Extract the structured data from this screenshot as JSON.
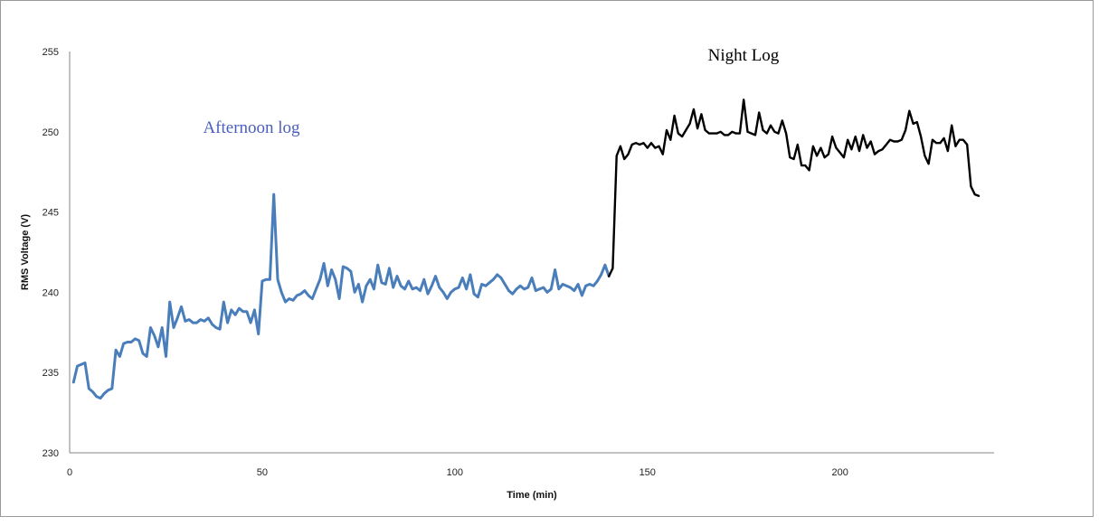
{
  "chart_data": {
    "type": "line",
    "xlabel": "Time (min)",
    "ylabel": "RMS Voltage (V)",
    "xlim": [
      0,
      240
    ],
    "ylim": [
      230,
      255
    ],
    "x_ticks": [
      0,
      50,
      100,
      150,
      200
    ],
    "y_ticks": [
      230,
      235,
      240,
      245,
      250,
      255
    ],
    "grid": false,
    "annotations": [
      {
        "text": "Afternoon log",
        "color": "#4a5fbd"
      },
      {
        "text": "Night Log",
        "color": "#000000"
      }
    ],
    "series": [
      {
        "color": "#4a7ebb",
        "points": [
          [
            1,
            234.4
          ],
          [
            2,
            235.4
          ],
          [
            3,
            235.5
          ],
          [
            4,
            235.6
          ],
          [
            5,
            234.0
          ],
          [
            6,
            233.8
          ],
          [
            7,
            233.5
          ],
          [
            8,
            233.4
          ],
          [
            9,
            233.7
          ],
          [
            10,
            233.9
          ],
          [
            11,
            234.0
          ],
          [
            12,
            236.4
          ],
          [
            13,
            236.0
          ],
          [
            14,
            236.8
          ],
          [
            15,
            236.9
          ],
          [
            16,
            236.9
          ],
          [
            17,
            237.1
          ],
          [
            18,
            237.0
          ],
          [
            19,
            236.2
          ],
          [
            20,
            236.0
          ],
          [
            21,
            237.8
          ],
          [
            22,
            237.3
          ],
          [
            23,
            236.6
          ],
          [
            24,
            237.8
          ],
          [
            25,
            236.0
          ],
          [
            26,
            239.4
          ],
          [
            27,
            237.8
          ],
          [
            28,
            238.4
          ],
          [
            29,
            239.1
          ],
          [
            30,
            238.2
          ],
          [
            31,
            238.3
          ],
          [
            32,
            238.1
          ],
          [
            33,
            238.1
          ],
          [
            34,
            238.3
          ],
          [
            35,
            238.2
          ],
          [
            36,
            238.4
          ],
          [
            37,
            238.0
          ],
          [
            38,
            237.8
          ],
          [
            39,
            237.7
          ],
          [
            40,
            239.4
          ],
          [
            41,
            238.1
          ],
          [
            42,
            238.9
          ],
          [
            43,
            238.6
          ],
          [
            44,
            239.0
          ],
          [
            45,
            238.8
          ],
          [
            46,
            238.8
          ],
          [
            47,
            238.1
          ],
          [
            48,
            238.9
          ],
          [
            49,
            237.4
          ],
          [
            50,
            240.7
          ],
          [
            51,
            240.8
          ],
          [
            52,
            240.8
          ],
          [
            53,
            246.1
          ],
          [
            54,
            240.8
          ],
          [
            55,
            240.0
          ],
          [
            56,
            239.4
          ],
          [
            57,
            239.6
          ],
          [
            58,
            239.5
          ],
          [
            59,
            239.8
          ],
          [
            60,
            239.9
          ],
          [
            61,
            240.1
          ],
          [
            62,
            239.8
          ],
          [
            63,
            239.6
          ],
          [
            64,
            240.2
          ],
          [
            65,
            240.8
          ],
          [
            66,
            241.8
          ],
          [
            67,
            240.4
          ],
          [
            68,
            241.4
          ],
          [
            69,
            240.8
          ],
          [
            70,
            239.6
          ],
          [
            71,
            241.6
          ],
          [
            72,
            241.5
          ],
          [
            73,
            241.3
          ],
          [
            74,
            240.0
          ],
          [
            75,
            240.5
          ],
          [
            76,
            239.4
          ],
          [
            77,
            240.4
          ],
          [
            78,
            240.8
          ],
          [
            79,
            240.2
          ],
          [
            80,
            241.7
          ],
          [
            81,
            240.6
          ],
          [
            82,
            240.5
          ],
          [
            83,
            241.5
          ],
          [
            84,
            240.3
          ],
          [
            85,
            241.0
          ],
          [
            86,
            240.4
          ],
          [
            87,
            240.2
          ],
          [
            88,
            240.7
          ],
          [
            89,
            240.2
          ],
          [
            90,
            240.3
          ],
          [
            91,
            240.1
          ],
          [
            92,
            240.8
          ],
          [
            93,
            239.9
          ],
          [
            94,
            240.4
          ],
          [
            95,
            241.0
          ],
          [
            96,
            240.3
          ],
          [
            97,
            240.0
          ],
          [
            98,
            239.6
          ],
          [
            99,
            240.0
          ],
          [
            100,
            240.2
          ],
          [
            101,
            240.3
          ],
          [
            102,
            240.9
          ],
          [
            103,
            240.2
          ],
          [
            104,
            241.1
          ],
          [
            105,
            239.9
          ],
          [
            106,
            239.7
          ],
          [
            107,
            240.5
          ],
          [
            108,
            240.4
          ],
          [
            109,
            240.6
          ],
          [
            110,
            240.8
          ],
          [
            111,
            241.1
          ],
          [
            112,
            240.9
          ],
          [
            113,
            240.5
          ],
          [
            114,
            240.1
          ],
          [
            115,
            239.9
          ],
          [
            116,
            240.2
          ],
          [
            117,
            240.4
          ],
          [
            118,
            240.2
          ],
          [
            119,
            240.3
          ],
          [
            120,
            240.9
          ],
          [
            121,
            240.1
          ],
          [
            122,
            240.2
          ],
          [
            123,
            240.3
          ],
          [
            124,
            240.0
          ],
          [
            125,
            240.2
          ],
          [
            126,
            241.4
          ],
          [
            127,
            240.2
          ],
          [
            128,
            240.5
          ],
          [
            129,
            240.4
          ],
          [
            130,
            240.3
          ],
          [
            131,
            240.1
          ],
          [
            132,
            240.5
          ],
          [
            133,
            239.8
          ],
          [
            134,
            240.4
          ],
          [
            135,
            240.5
          ],
          [
            136,
            240.4
          ],
          [
            137,
            240.7
          ],
          [
            138,
            241.1
          ],
          [
            139,
            241.7
          ],
          [
            140,
            241.0
          ]
        ]
      },
      {
        "color": "#000000",
        "points": [
          [
            140,
            241.0
          ],
          [
            141,
            241.5
          ],
          [
            142,
            248.5
          ],
          [
            143,
            249.1
          ],
          [
            144,
            248.3
          ],
          [
            145,
            248.6
          ],
          [
            146,
            249.2
          ],
          [
            147,
            249.3
          ],
          [
            148,
            249.2
          ],
          [
            149,
            249.3
          ],
          [
            150,
            249.0
          ],
          [
            151,
            249.3
          ],
          [
            152,
            249.0
          ],
          [
            153,
            249.1
          ],
          [
            154,
            248.6
          ],
          [
            155,
            250.1
          ],
          [
            156,
            249.5
          ],
          [
            157,
            251.0
          ],
          [
            158,
            249.9
          ],
          [
            159,
            249.7
          ],
          [
            160,
            250.1
          ],
          [
            161,
            250.5
          ],
          [
            162,
            251.4
          ],
          [
            163,
            250.2
          ],
          [
            164,
            251.1
          ],
          [
            165,
            250.1
          ],
          [
            166,
            249.9
          ],
          [
            167,
            249.9
          ],
          [
            168,
            249.9
          ],
          [
            169,
            250.0
          ],
          [
            170,
            249.8
          ],
          [
            171,
            249.8
          ],
          [
            172,
            250.0
          ],
          [
            173,
            249.9
          ],
          [
            174,
            249.9
          ],
          [
            175,
            252.0
          ],
          [
            176,
            250.0
          ],
          [
            177,
            249.9
          ],
          [
            178,
            249.8
          ],
          [
            179,
            251.2
          ],
          [
            180,
            250.1
          ],
          [
            181,
            249.9
          ],
          [
            182,
            250.4
          ],
          [
            183,
            250.0
          ],
          [
            184,
            249.9
          ],
          [
            185,
            250.7
          ],
          [
            186,
            249.9
          ],
          [
            187,
            248.4
          ],
          [
            188,
            248.3
          ],
          [
            189,
            249.2
          ],
          [
            190,
            247.9
          ],
          [
            191,
            247.9
          ],
          [
            192,
            247.6
          ],
          [
            193,
            249.1
          ],
          [
            194,
            248.5
          ],
          [
            195,
            249.0
          ],
          [
            196,
            248.4
          ],
          [
            197,
            248.6
          ],
          [
            198,
            249.7
          ],
          [
            199,
            249.0
          ],
          [
            200,
            248.7
          ],
          [
            201,
            248.4
          ],
          [
            202,
            249.5
          ],
          [
            203,
            248.9
          ],
          [
            204,
            249.7
          ],
          [
            205,
            248.8
          ],
          [
            206,
            249.8
          ],
          [
            207,
            249.0
          ],
          [
            208,
            249.4
          ],
          [
            209,
            248.6
          ],
          [
            210,
            248.8
          ],
          [
            211,
            248.9
          ],
          [
            212,
            249.2
          ],
          [
            213,
            249.5
          ],
          [
            214,
            249.4
          ],
          [
            215,
            249.4
          ],
          [
            216,
            249.5
          ],
          [
            217,
            250.1
          ],
          [
            218,
            251.3
          ],
          [
            219,
            250.5
          ],
          [
            220,
            250.6
          ],
          [
            221,
            249.7
          ],
          [
            222,
            248.5
          ],
          [
            223,
            248.0
          ],
          [
            224,
            249.5
          ],
          [
            225,
            249.3
          ],
          [
            226,
            249.3
          ],
          [
            227,
            249.6
          ],
          [
            228,
            248.8
          ],
          [
            229,
            250.4
          ],
          [
            230,
            249.1
          ],
          [
            231,
            249.5
          ],
          [
            232,
            249.5
          ],
          [
            233,
            249.2
          ],
          [
            234,
            246.6
          ],
          [
            235,
            246.1
          ],
          [
            236,
            246.0
          ]
        ]
      }
    ]
  }
}
